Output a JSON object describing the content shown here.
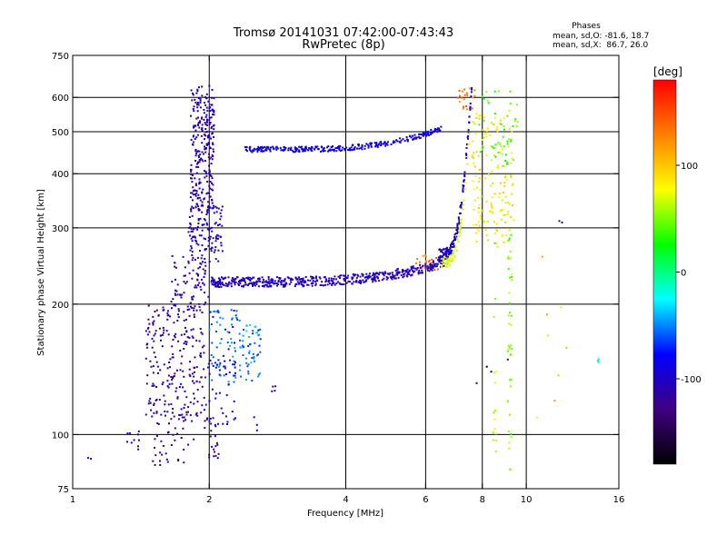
{
  "chart_data": {
    "type": "scatter",
    "title": "Tromsø 20141031 07:42:00-07:43:43",
    "subtitle": "RwPretec (8p)",
    "phase_header": {
      "title": "Phases",
      "line_o": "mean, sd,O: -81.6, 18.7",
      "line_x": "mean, sd,X:  86.7, 26.0"
    },
    "xlabel": "Frequency [MHz]",
    "ylabel": "Stationary phase Virtual Height [km]",
    "x_scale": "log",
    "y_scale": "log",
    "xlim": [
      1,
      16
    ],
    "ylim": [
      75,
      750
    ],
    "x_ticks": [
      1,
      2,
      4,
      6,
      8,
      10,
      16
    ],
    "x_tick_labels": [
      "1",
      "2",
      "4",
      "6",
      "8",
      "10",
      "16"
    ],
    "y_ticks": [
      75,
      100,
      200,
      300,
      400,
      500,
      600,
      750
    ],
    "y_tick_labels": [
      "75",
      "100",
      "200",
      "300",
      "400",
      "500",
      "600",
      "750"
    ],
    "x_grid": [
      2,
      4,
      6,
      8,
      10
    ],
    "y_grid": [
      100,
      200,
      300,
      400,
      500,
      600
    ],
    "colorbar": {
      "label": "[deg]",
      "range": [
        -180,
        180
      ],
      "ticks": [
        100,
        0,
        -100
      ],
      "tick_labels": [
        "100",
        "0",
        "-100"
      ],
      "colors": [
        "#ff0000",
        "#ff8000",
        "#ffff00",
        "#00ff00",
        "#00ffff",
        "#0000ff",
        "#400080",
        "#000000"
      ]
    },
    "point_groups": [
      {
        "x0": 1.82,
        "x1": 2.05,
        "y0": 330,
        "y1": 640,
        "phase": -110,
        "n": 260
      },
      {
        "x0": 1.8,
        "x1": 2.15,
        "y0": 250,
        "y1": 340,
        "phase": -105,
        "n": 120
      },
      {
        "x0": 1.45,
        "x1": 1.95,
        "y0": 110,
        "y1": 200,
        "phase": -115,
        "n": 230
      },
      {
        "x0": 1.65,
        "x1": 2.0,
        "y0": 195,
        "y1": 260,
        "phase": -110,
        "n": 80
      },
      {
        "x0": 1.5,
        "x1": 1.85,
        "y0": 85,
        "y1": 110,
        "phase": -125,
        "n": 40
      },
      {
        "x0": 1.95,
        "x1": 2.1,
        "y0": 88,
        "y1": 110,
        "phase": -110,
        "n": 25
      },
      {
        "x0": 2.0,
        "x1": 2.35,
        "y0": 130,
        "y1": 195,
        "phase": -60,
        "n": 70
      },
      {
        "x0": 2.35,
        "x1": 2.6,
        "y0": 130,
        "y1": 180,
        "phase": -50,
        "n": 50
      },
      {
        "x0": 1.95,
        "x1": 2.3,
        "y0": 105,
        "y1": 150,
        "phase": -90,
        "n": 40
      },
      {
        "x0": 2.7,
        "x1": 2.8,
        "y0": 125,
        "y1": 130,
        "phase": -110,
        "n": 4
      },
      {
        "x0": 2.5,
        "x1": 2.55,
        "y0": 100,
        "y1": 110,
        "phase": -100,
        "n": 3
      },
      {
        "x0": 1.3,
        "x1": 1.45,
        "y0": 92,
        "y1": 102,
        "phase": -115,
        "n": 10
      },
      {
        "x0": 1.05,
        "x1": 1.1,
        "y0": 85,
        "y1": 90,
        "phase": -100,
        "n": 2
      },
      {
        "x0": 5.7,
        "x1": 6.5,
        "y0": 240,
        "y1": 260,
        "phase": 140,
        "n": 25
      },
      {
        "x0": 7.0,
        "x1": 7.8,
        "y0": 560,
        "y1": 630,
        "phase": 130,
        "n": 20
      },
      {
        "x0": 7.6,
        "x1": 9.4,
        "y0": 270,
        "y1": 560,
        "phase": 80,
        "n": 160
      },
      {
        "x0": 7.8,
        "x1": 9.6,
        "y0": 420,
        "y1": 620,
        "phase": 40,
        "n": 45
      },
      {
        "x0": 9.1,
        "x1": 9.3,
        "y0": 80,
        "y1": 290,
        "phase": 50,
        "n": 40
      },
      {
        "x0": 8.45,
        "x1": 8.6,
        "y0": 90,
        "y1": 300,
        "phase": 60,
        "n": 16
      },
      {
        "x0": 7.7,
        "x1": 9.4,
        "y0": 130,
        "y1": 150,
        "phase": -150,
        "n": 4
      },
      {
        "x0": 10.5,
        "x1": 12.4,
        "y0": 85,
        "y1": 680,
        "phase": 100,
        "n": 8
      },
      {
        "x0": 14.3,
        "x1": 14.5,
        "y0": 145,
        "y1": 150,
        "phase": -20,
        "n": 3
      },
      {
        "x0": 11.8,
        "x1": 12.0,
        "y0": 305,
        "y1": 315,
        "phase": -110,
        "n": 2
      }
    ],
    "traces": [
      {
        "f_start": 2.02,
        "f_end": 6.6,
        "h_start": 225,
        "h_end": 250,
        "spread": 12,
        "n": 520,
        "phase": -105
      },
      {
        "f_start": 2.4,
        "f_end": 6.5,
        "h_start": 455,
        "h_end": 510,
        "spread": 13,
        "n": 300,
        "phase": -90
      },
      {
        "f_start": 6.4,
        "f_end": 7.6,
        "h_start": 260,
        "h_end": 650,
        "spread": 18,
        "n": 150,
        "phase": -100
      },
      {
        "f_start": 6.5,
        "f_end": 7.5,
        "h_start": 250,
        "h_end": 500,
        "spread": 14,
        "n": 70,
        "phase": 70
      }
    ]
  }
}
